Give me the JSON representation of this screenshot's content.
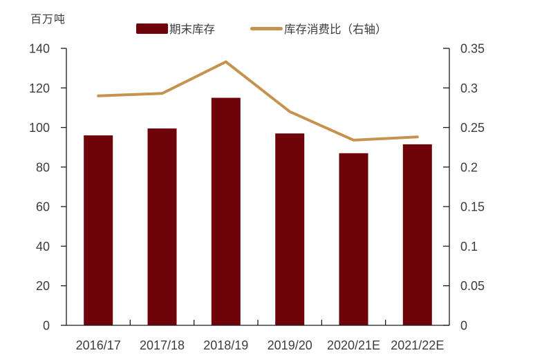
{
  "chart_data": {
    "type": "bar+line",
    "title": "",
    "unit_label": "百万吨",
    "categories": [
      "2016/17",
      "2017/18",
      "2018/19",
      "2019/20",
      "2020/21E",
      "2021/22E"
    ],
    "series": [
      {
        "name": "期末库存",
        "type": "bar",
        "axis": "left",
        "values": [
          96,
          99.5,
          115,
          97,
          87,
          91.5
        ]
      },
      {
        "name": "库存消费比（右轴）",
        "type": "line",
        "axis": "right",
        "values": [
          0.29,
          0.293,
          0.333,
          0.27,
          0.234,
          0.238
        ]
      }
    ],
    "left_axis": {
      "unit": "百万吨",
      "min": 0,
      "max": 140,
      "step": 20,
      "tick_labels": [
        "0",
        "20",
        "40",
        "60",
        "80",
        "100",
        "120",
        "140"
      ]
    },
    "right_axis": {
      "min": 0,
      "max": 0.35,
      "step": 0.05,
      "tick_labels": [
        "0",
        "0.05",
        "0.1",
        "0.15",
        "0.2",
        "0.25",
        "0.3",
        "0.35"
      ]
    },
    "grid": false,
    "legend_position": "top",
    "colors": {
      "bar": "#6E0409",
      "line": "#C5934E",
      "text": "#3C3C3C",
      "axis": "#1A1A1A"
    }
  },
  "legend": {
    "bar_label": "期末库存",
    "line_label": "库存消费比（右轴）"
  }
}
